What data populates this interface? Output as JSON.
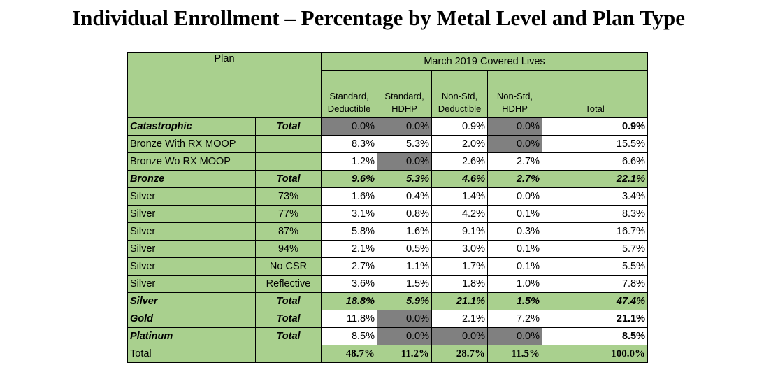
{
  "title": "Individual Enrollment – Percentage by Metal Level and Plan Type",
  "table": {
    "header": {
      "plan": "Plan",
      "group": "March 2019 Covered Lives",
      "columns": [
        "Standard, Deductible",
        "Standard, HDHP",
        "Non-Std, Deductible",
        "Non-Std, HDHP",
        "Total"
      ]
    },
    "rows": [
      {
        "plan": "Catastrophic",
        "sub": "Total",
        "values": [
          "0.0%",
          "0.0%",
          "0.9%",
          "0.0%",
          "0.9%"
        ]
      },
      {
        "plan": "Bronze With RX MOOP",
        "values": [
          "8.3%",
          "5.3%",
          "2.0%",
          "0.0%",
          "15.5%"
        ]
      },
      {
        "plan": "Bronze Wo RX MOOP",
        "values": [
          "1.2%",
          "0.0%",
          "2.6%",
          "2.7%",
          "6.6%"
        ]
      },
      {
        "plan": "Bronze",
        "sub": "Total",
        "values": [
          "9.6%",
          "5.3%",
          "4.6%",
          "2.7%",
          "22.1%"
        ]
      },
      {
        "plan": "Silver",
        "sub": "73%",
        "values": [
          "1.6%",
          "0.4%",
          "1.4%",
          "0.0%",
          "3.4%"
        ]
      },
      {
        "plan": "Silver",
        "sub": "77%",
        "values": [
          "3.1%",
          "0.8%",
          "4.2%",
          "0.1%",
          "8.3%"
        ]
      },
      {
        "plan": "Silver",
        "sub": "87%",
        "values": [
          "5.8%",
          "1.6%",
          "9.1%",
          "0.3%",
          "16.7%"
        ]
      },
      {
        "plan": "Silver",
        "sub": "94%",
        "values": [
          "2.1%",
          "0.5%",
          "3.0%",
          "0.1%",
          "5.7%"
        ]
      },
      {
        "plan": "Silver",
        "sub": "No CSR",
        "values": [
          "2.7%",
          "1.1%",
          "1.7%",
          "0.1%",
          "5.5%"
        ]
      },
      {
        "plan": "Silver",
        "sub": "Reflective",
        "values": [
          "3.6%",
          "1.5%",
          "1.8%",
          "1.0%",
          "7.8%"
        ]
      },
      {
        "plan": "Silver",
        "sub": "Total",
        "values": [
          "18.8%",
          "5.9%",
          "21.1%",
          "1.5%",
          "47.4%"
        ]
      },
      {
        "plan": "Gold",
        "sub": "Total",
        "values": [
          "11.8%",
          "0.0%",
          "2.1%",
          "7.2%",
          "21.1%"
        ]
      },
      {
        "plan": "Platinum",
        "sub": "Total",
        "values": [
          "8.5%",
          "0.0%",
          "0.0%",
          "0.0%",
          "8.5%"
        ]
      },
      {
        "plan": "Total",
        "values": [
          "48.7%",
          "11.2%",
          "28.7%",
          "11.5%",
          "100.0%"
        ]
      }
    ]
  }
}
